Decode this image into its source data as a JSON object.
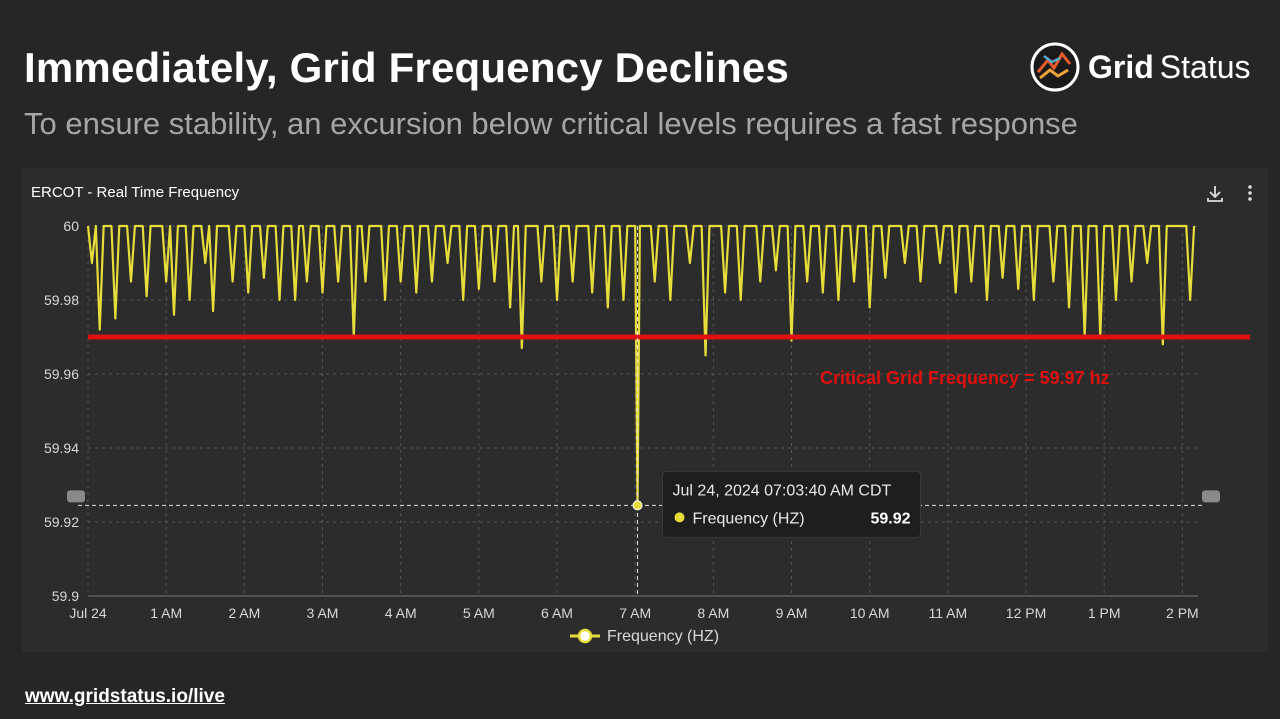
{
  "slide": {
    "title": "Immediately, Grid Frequency Declines",
    "subtitle": "To ensure stability, an excursion below critical levels requires a fast response",
    "footer_url": "www.gridstatus.io/live"
  },
  "logo": {
    "word_bold": "Grid",
    "word_regular": "Status",
    "icon": "gridstatus-logo-icon"
  },
  "panel": {
    "title": "ERCOT - Real Time Frequency",
    "download_icon": "download-icon",
    "more_icon": "more-vertical-icon"
  },
  "colors": {
    "background": "#262626",
    "panel": "#2c2c2c",
    "series": "#e6dd3b",
    "critical": "#e01010",
    "grid": "#555555"
  },
  "chart_data": {
    "type": "line",
    "title": "ERCOT - Real Time Frequency",
    "xlabel": "",
    "ylabel": "",
    "ylim": [
      59.9,
      60
    ],
    "xlim": [
      0,
      14.2
    ],
    "yticks": [
      "60",
      "59.98",
      "59.96",
      "59.94",
      "59.92",
      "59.9"
    ],
    "ytick_values": [
      60,
      59.98,
      59.96,
      59.94,
      59.92,
      59.9
    ],
    "xticks": [
      "Jul 24",
      "1 AM",
      "2 AM",
      "3 AM",
      "4 AM",
      "5 AM",
      "6 AM",
      "7 AM",
      "8 AM",
      "9 AM",
      "10 AM",
      "11 AM",
      "12 PM",
      "1 PM",
      "2 PM"
    ],
    "xtick_values": [
      0,
      1,
      2,
      3,
      4,
      5,
      6,
      7,
      8,
      9,
      10,
      11,
      12,
      13,
      14
    ],
    "series": [
      {
        "name": "Frequency (HZ)",
        "dips": [
          [
            0.05,
            59.99
          ],
          [
            0.15,
            59.972
          ],
          [
            0.35,
            59.975
          ],
          [
            0.55,
            59.985
          ],
          [
            0.75,
            59.981
          ],
          [
            1.0,
            59.985
          ],
          [
            1.1,
            59.976
          ],
          [
            1.3,
            59.98
          ],
          [
            1.5,
            59.99
          ],
          [
            1.6,
            59.977
          ],
          [
            1.85,
            59.985
          ],
          [
            2.05,
            59.982
          ],
          [
            2.25,
            59.986
          ],
          [
            2.45,
            59.98
          ],
          [
            2.65,
            59.98
          ],
          [
            2.8,
            59.985
          ],
          [
            3.0,
            59.982
          ],
          [
            3.2,
            59.985
          ],
          [
            3.4,
            59.97
          ],
          [
            3.55,
            59.985
          ],
          [
            3.8,
            59.98
          ],
          [
            4.0,
            59.985
          ],
          [
            4.2,
            59.982
          ],
          [
            4.4,
            59.985
          ],
          [
            4.6,
            59.99
          ],
          [
            4.8,
            59.98
          ],
          [
            5.0,
            59.983
          ],
          [
            5.2,
            59.985
          ],
          [
            5.4,
            59.978
          ],
          [
            5.55,
            59.967
          ],
          [
            5.8,
            59.985
          ],
          [
            6.0,
            59.98
          ],
          [
            6.2,
            59.985
          ],
          [
            6.45,
            59.982
          ],
          [
            6.65,
            59.978
          ],
          [
            6.85,
            59.98
          ],
          [
            7.03,
            59.9245
          ],
          [
            7.25,
            59.985
          ],
          [
            7.45,
            59.98
          ],
          [
            7.7,
            59.99
          ],
          [
            7.9,
            59.965
          ],
          [
            8.15,
            59.982
          ],
          [
            8.35,
            59.98
          ],
          [
            8.6,
            59.985
          ],
          [
            8.8,
            59.988
          ],
          [
            9.0,
            59.969
          ],
          [
            9.2,
            59.985
          ],
          [
            9.4,
            59.982
          ],
          [
            9.6,
            59.98
          ],
          [
            9.8,
            59.985
          ],
          [
            10.0,
            59.978
          ],
          [
            10.2,
            59.986
          ],
          [
            10.45,
            59.99
          ],
          [
            10.65,
            59.985
          ],
          [
            10.9,
            59.99
          ],
          [
            11.1,
            59.982
          ],
          [
            11.3,
            59.985
          ],
          [
            11.5,
            59.98
          ],
          [
            11.7,
            59.986
          ],
          [
            11.9,
            59.983
          ],
          [
            12.1,
            59.98
          ],
          [
            12.35,
            59.985
          ],
          [
            12.55,
            59.978
          ],
          [
            12.75,
            59.97
          ],
          [
            12.95,
            59.97
          ],
          [
            13.15,
            59.98
          ],
          [
            13.35,
            59.985
          ],
          [
            13.55,
            59.99
          ],
          [
            13.75,
            59.968
          ],
          [
            14.1,
            59.98
          ]
        ]
      }
    ],
    "critical_line": {
      "value": 59.97,
      "label": "Critical Grid Frequency = 59.97 hz"
    },
    "tooltip": {
      "x_value": 7.03,
      "y_value": 59.9245,
      "time": "Jul 24, 2024 07:03:40 AM CDT",
      "series_label": "Frequency (HZ)",
      "value_label": "59.92"
    },
    "legend": {
      "label": "Frequency (HZ)",
      "position": "bottom-center"
    },
    "grid": true
  }
}
